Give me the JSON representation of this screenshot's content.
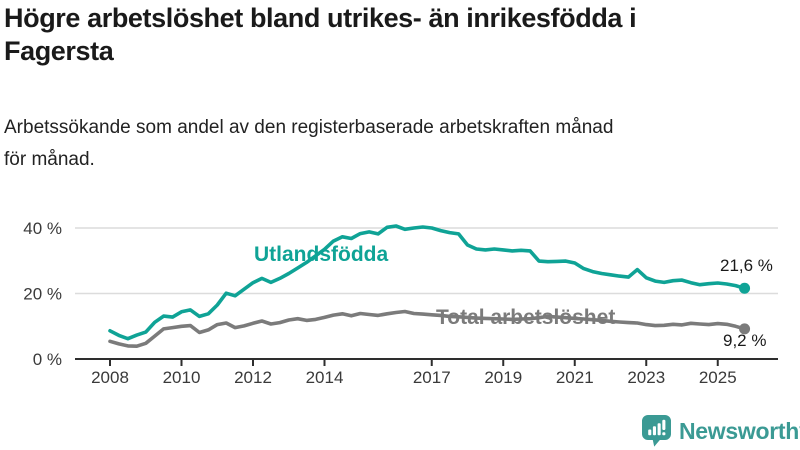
{
  "header": {
    "title_line1": "Högre arbetslöshet bland utrikes- än inrikesfödda i",
    "title_line2": "Fagersta",
    "subtitle_line1": "Arbetssökande som andel av den registerbaserade arbetskraften månad",
    "subtitle_line2": "för månad."
  },
  "chart_data": {
    "type": "line",
    "title": "Högre arbetslöshet bland utrikes- än inrikesfödda i Fagersta",
    "subtitle": "Arbetssökande som andel av den registerbaserade arbetskraften månad för månad.",
    "unit": "%",
    "grid": "horizontal",
    "legend_position": "inline-labels",
    "x_ticks": [
      "2008",
      "2010",
      "2012",
      "2014",
      "2017",
      "2019",
      "2021",
      "2023",
      "2025"
    ],
    "y_ticks": [
      0,
      20,
      40
    ],
    "y_tick_labels": [
      "0 %",
      "20 %",
      "40 %"
    ],
    "ylim": [
      0,
      43
    ],
    "xlim": [
      2007.0,
      2026.7
    ],
    "x": [
      2008.0,
      2008.25,
      2008.5,
      2008.75,
      2009.0,
      2009.25,
      2009.5,
      2009.75,
      2010.0,
      2010.25,
      2010.5,
      2010.75,
      2011.0,
      2011.25,
      2011.5,
      2011.75,
      2012.0,
      2012.25,
      2012.5,
      2012.75,
      2013.0,
      2013.25,
      2013.5,
      2013.75,
      2014.0,
      2014.25,
      2014.5,
      2014.75,
      2015.0,
      2015.25,
      2015.5,
      2015.75,
      2016.0,
      2016.25,
      2016.5,
      2016.75,
      2017.0,
      2017.25,
      2017.5,
      2017.75,
      2018.0,
      2018.25,
      2018.5,
      2018.75,
      2019.0,
      2019.25,
      2019.5,
      2019.75,
      2020.0,
      2020.25,
      2020.5,
      2020.75,
      2021.0,
      2021.25,
      2021.5,
      2021.75,
      2022.0,
      2022.25,
      2022.5,
      2022.75,
      2023.0,
      2023.25,
      2023.5,
      2023.75,
      2024.0,
      2024.25,
      2024.5,
      2024.75,
      2025.0,
      2025.25,
      2025.5,
      2025.75
    ],
    "series": [
      {
        "name": "Utlandsfödda",
        "color": "#0fa396",
        "end_label": "21,6 %",
        "end_value": 21.6,
        "values": [
          8.6,
          7.2,
          6.2,
          7.3,
          8.2,
          11.2,
          13.1,
          12.8,
          14.4,
          15.0,
          13.0,
          13.8,
          16.5,
          20.1,
          19.3,
          21.3,
          23.3,
          24.6,
          23.4,
          24.6,
          26.1,
          27.8,
          29.5,
          31.5,
          33.5,
          36.0,
          37.3,
          36.8,
          38.3,
          38.8,
          38.2,
          40.2,
          40.6,
          39.6,
          40.0,
          40.3,
          40.0,
          39.2,
          38.6,
          38.2,
          34.8,
          33.6,
          33.3,
          33.6,
          33.3,
          33.0,
          33.2,
          33.0,
          29.9,
          29.7,
          29.8,
          29.9,
          29.3,
          27.6,
          26.7,
          26.1,
          25.7,
          25.3,
          25.0,
          27.3,
          24.8,
          23.8,
          23.4,
          23.9,
          24.1,
          23.3,
          22.7,
          23.0,
          23.2,
          22.9,
          22.4,
          21.6
        ]
      },
      {
        "name": "Total arbetslöshet",
        "color": "#7b7b7b",
        "end_label": "9,2 %",
        "end_value": 9.2,
        "values": [
          5.4,
          4.6,
          4.0,
          3.9,
          4.8,
          7.0,
          9.2,
          9.6,
          10.0,
          10.2,
          8.1,
          8.9,
          10.5,
          11.0,
          9.6,
          10.1,
          10.9,
          11.6,
          10.7,
          11.1,
          11.9,
          12.3,
          11.8,
          12.1,
          12.7,
          13.4,
          13.8,
          13.2,
          13.9,
          13.6,
          13.3,
          13.8,
          14.2,
          14.5,
          13.9,
          13.7,
          13.5,
          13.3,
          13.0,
          12.9,
          12.7,
          12.5,
          12.4,
          12.3,
          12.2,
          12.1,
          12.2,
          12.3,
          12.6,
          13.0,
          12.8,
          12.6,
          12.4,
          12.2,
          12.0,
          11.8,
          11.5,
          11.3,
          11.1,
          11.0,
          10.5,
          10.2,
          10.3,
          10.6,
          10.4,
          10.9,
          10.7,
          10.5,
          10.8,
          10.6,
          10.0,
          9.2
        ]
      }
    ],
    "axis_colors": {
      "grid": "#dcdcdc",
      "axis": "#2e2e2e",
      "tick_label": "#3a3a3a"
    }
  },
  "branding": {
    "wordmark": "Newsworthy",
    "icon": "newsworthy-logo-icon",
    "color": "#3b9a94"
  }
}
